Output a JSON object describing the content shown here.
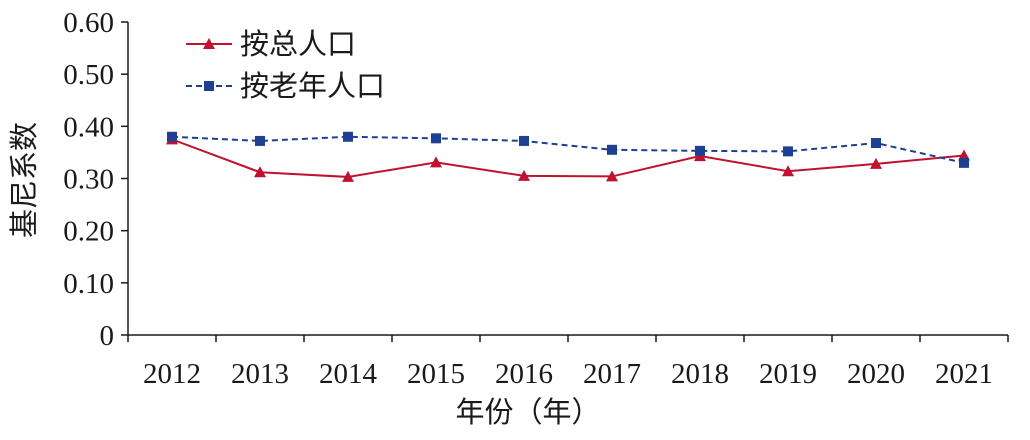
{
  "chart_data": {
    "type": "line",
    "title": "",
    "xlabel": "年份（年）",
    "ylabel": "基尼系数",
    "categories": [
      "2012",
      "2013",
      "2014",
      "2015",
      "2016",
      "2017",
      "2018",
      "2019",
      "2020",
      "2021"
    ],
    "ylim": [
      0,
      0.6
    ],
    "yticks": [
      "0",
      "0.10",
      "0.20",
      "0.30",
      "0.40",
      "0.50",
      "0.60"
    ],
    "grid": false,
    "legend_position": "top-left",
    "series": [
      {
        "name": "按总人口",
        "values": [
          0.375,
          0.312,
          0.303,
          0.331,
          0.305,
          0.304,
          0.343,
          0.314,
          0.328,
          0.344
        ],
        "color": "#c0122e",
        "marker": "triangle",
        "line_style": "solid"
      },
      {
        "name": "按老年人口",
        "values": [
          0.38,
          0.372,
          0.38,
          0.377,
          0.372,
          0.355,
          0.353,
          0.352,
          0.368,
          0.33
        ],
        "color": "#1f3f93",
        "marker": "square",
        "line_style": "dashed"
      }
    ]
  }
}
